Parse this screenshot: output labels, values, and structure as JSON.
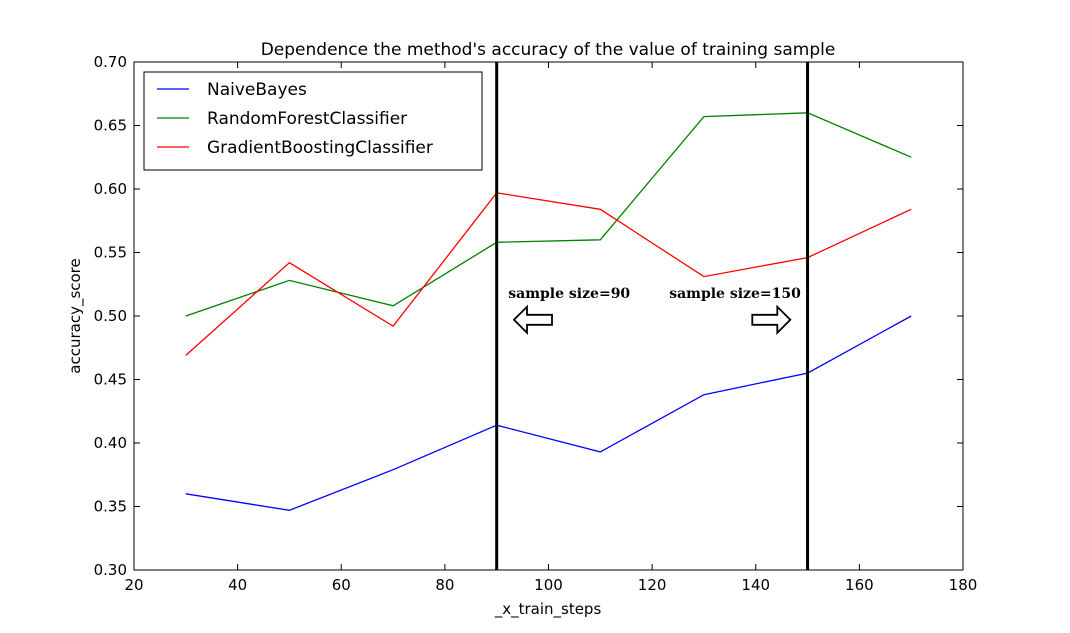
{
  "chart_data": {
    "type": "line",
    "title": "Dependence the method's accuracy of the value of training sample",
    "xlabel": "_x_train_steps",
    "ylabel": "accuracy_score",
    "xlim": [
      20,
      180
    ],
    "ylim": [
      0.3,
      0.7
    ],
    "xticks": [
      20,
      40,
      60,
      80,
      100,
      120,
      140,
      160,
      180
    ],
    "xtick_labels": [
      "20",
      "40",
      "60",
      "80",
      "100",
      "120",
      "140",
      "160",
      "180"
    ],
    "yticks": [
      0.3,
      0.35,
      0.4,
      0.45,
      0.5,
      0.55,
      0.6,
      0.65,
      0.7
    ],
    "ytick_labels": [
      "0.30",
      "0.35",
      "0.40",
      "0.45",
      "0.50",
      "0.55",
      "0.60",
      "0.65",
      "0.70"
    ],
    "grid": false,
    "legend_position": "top-left",
    "x": [
      30,
      50,
      70,
      90,
      110,
      130,
      150,
      170
    ],
    "series": [
      {
        "name": "NaiveBayes",
        "color": "#0000ff",
        "values": [
          0.36,
          0.347,
          0.379,
          0.414,
          0.393,
          0.438,
          0.455,
          0.5
        ]
      },
      {
        "name": "RandomForestClassifier",
        "color": "#008000",
        "values": [
          0.5,
          0.528,
          0.508,
          0.558,
          0.56,
          0.657,
          0.66,
          0.625
        ]
      },
      {
        "name": "GradientBoostingClassifier",
        "color": "#ff0000",
        "values": [
          0.469,
          0.542,
          0.492,
          0.597,
          0.584,
          0.531,
          0.546,
          0.584
        ]
      }
    ],
    "vlines": [
      {
        "x": 90,
        "color": "#000000"
      },
      {
        "x": 150,
        "color": "#000000"
      }
    ],
    "annotations": [
      {
        "text": "sample size=90",
        "x": 104,
        "y": 0.514,
        "arrow": "left",
        "arrow_x": 97,
        "arrow_y": 0.497
      },
      {
        "text": "sample size=150",
        "x": 136,
        "y": 0.514,
        "arrow": "right",
        "arrow_x": 143,
        "arrow_y": 0.497
      }
    ]
  }
}
